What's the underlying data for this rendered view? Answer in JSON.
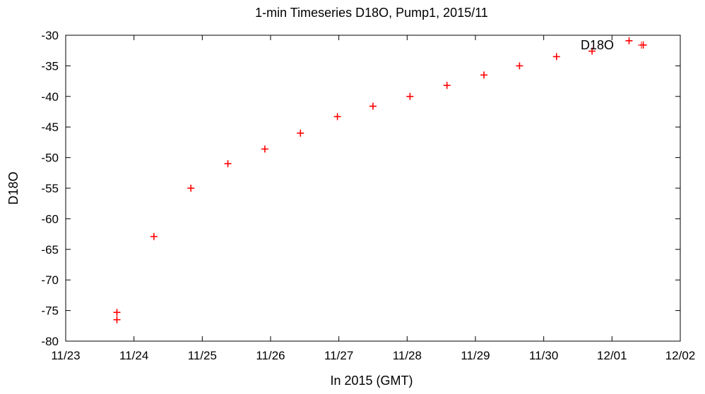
{
  "chart_data": {
    "type": "scatter",
    "title": "1-min Timeseries D18O, Pump1, 2015/11",
    "xlabel": "In 2015 (GMT)",
    "ylabel": "D18O",
    "xlim": [
      "11/23",
      "12/02"
    ],
    "ylim": [
      -80,
      -30
    ],
    "x_ticks": [
      "11/23",
      "11/24",
      "11/25",
      "11/26",
      "11/27",
      "11/28",
      "11/29",
      "11/30",
      "12/01",
      "12/02"
    ],
    "y_ticks": [
      -30,
      -35,
      -40,
      -45,
      -50,
      -55,
      -60,
      -65,
      -70,
      -75,
      -80
    ],
    "grid": false,
    "legend": {
      "position": "top-right",
      "entries": [
        "D18O"
      ]
    },
    "series": [
      {
        "name": "D18O",
        "color": "#ff0000",
        "marker": "plus",
        "points": [
          {
            "x": "2015-11-23 18:00",
            "y": -76.5
          },
          {
            "x": "2015-11-23 18:00",
            "y": -75.3
          },
          {
            "x": "2015-11-24 07:00",
            "y": -62.9
          },
          {
            "x": "2015-11-24 20:00",
            "y": -55.0
          },
          {
            "x": "2015-11-25 09:00",
            "y": -51.0
          },
          {
            "x": "2015-11-25 22:00",
            "y": -48.6
          },
          {
            "x": "2015-11-26 10:30",
            "y": -46.0
          },
          {
            "x": "2015-11-26 23:30",
            "y": -43.3
          },
          {
            "x": "2015-11-27 12:00",
            "y": -41.6
          },
          {
            "x": "2015-11-28 01:00",
            "y": -40.0
          },
          {
            "x": "2015-11-28 14:00",
            "y": -38.2
          },
          {
            "x": "2015-11-29 03:00",
            "y": -36.5
          },
          {
            "x": "2015-11-29 15:30",
            "y": -35.0
          },
          {
            "x": "2015-11-30 04:30",
            "y": -33.5
          },
          {
            "x": "2015-11-30 17:00",
            "y": -32.6
          },
          {
            "x": "2015-12-01 06:00",
            "y": -30.9
          },
          {
            "x": "2015-12-01 11:00",
            "y": -31.6
          }
        ]
      }
    ]
  }
}
